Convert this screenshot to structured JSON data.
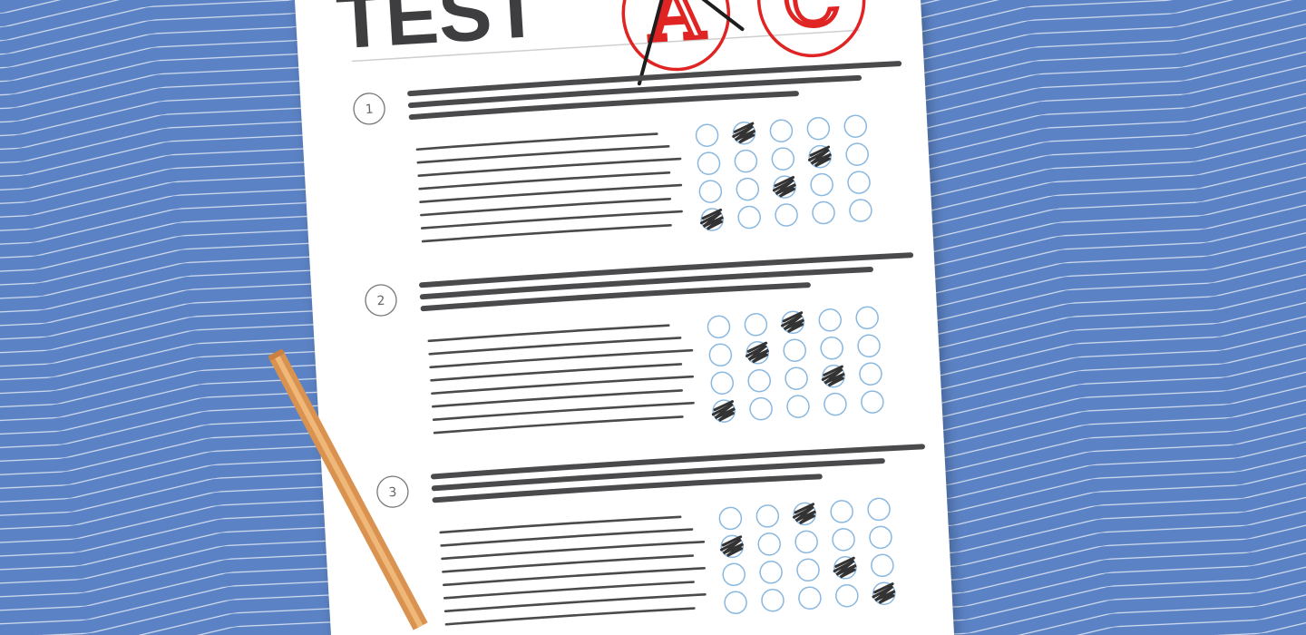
{
  "sheet": {
    "title": "TEST",
    "grades": [
      {
        "letter": "A",
        "crossed_out": true
      },
      {
        "letter": "C",
        "crossed_out": false
      }
    ],
    "questions": [
      {
        "number": "1",
        "filled_bubbles": [
          [
            0,
            1
          ],
          [
            1,
            3
          ],
          [
            2,
            2
          ],
          [
            3,
            0
          ]
        ]
      },
      {
        "number": "2",
        "filled_bubbles": [
          [
            0,
            2
          ],
          [
            1,
            1
          ],
          [
            2,
            3
          ],
          [
            3,
            0
          ]
        ]
      },
      {
        "number": "3",
        "filled_bubbles": [
          [
            0,
            2
          ],
          [
            1,
            0
          ],
          [
            2,
            3
          ],
          [
            3,
            4
          ]
        ]
      }
    ],
    "bubble_grid": {
      "rows": 4,
      "cols": 5
    }
  },
  "colors": {
    "background": "#5b82c4",
    "zigzag": "#ffffff",
    "paper": "#ffffff",
    "ink": "#4a4a4c",
    "bubble": "#8ab8e0",
    "grade_red": "#e02424",
    "pencil": "#e0a060"
  }
}
